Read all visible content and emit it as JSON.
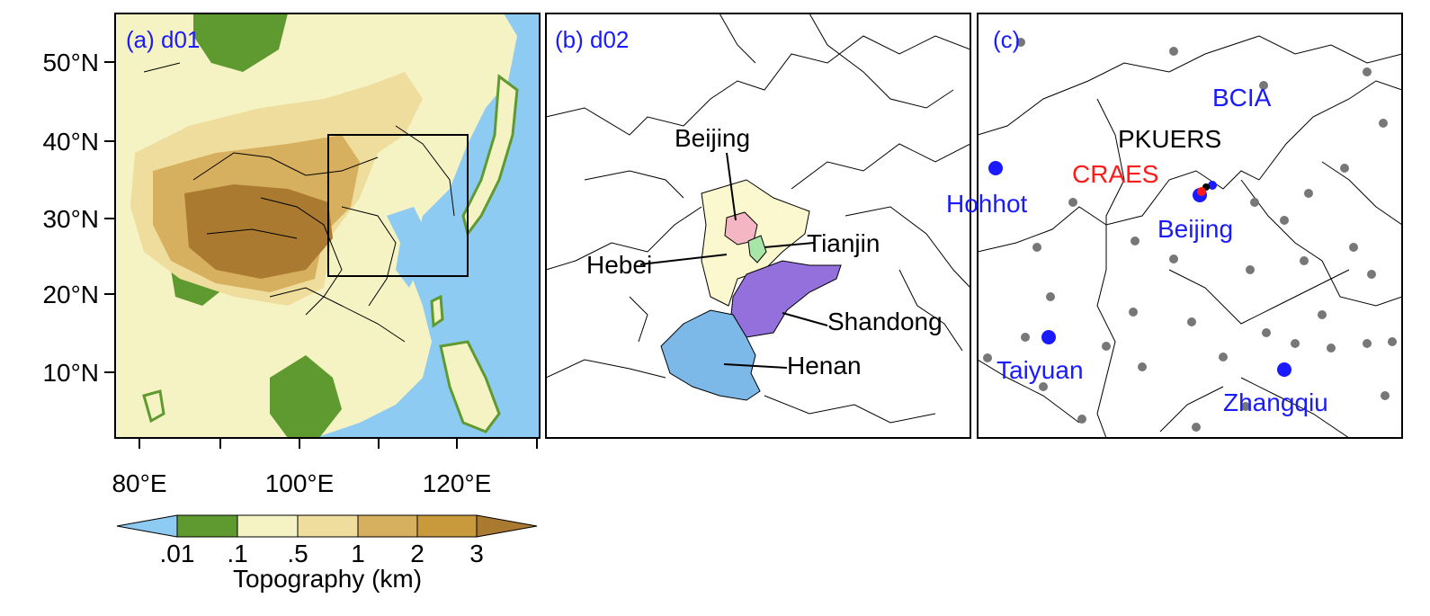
{
  "panel_a": {
    "label": "(a) d01",
    "lat_ticks": [
      "50°N",
      "40°N",
      "30°N",
      "20°N",
      "10°N"
    ],
    "lon_ticks": [
      "80°E",
      "100°E",
      "120°E"
    ]
  },
  "panel_b": {
    "label": "(b) d02",
    "regions": [
      {
        "name": "Beijing",
        "color": "#f4b6c2"
      },
      {
        "name": "Tianjin",
        "color": "#a8e6a8"
      },
      {
        "name": "Hebei",
        "color": "#fbf7cf"
      },
      {
        "name": "Shandong",
        "color": "#9370db"
      },
      {
        "name": "Henan",
        "color": "#7cb9e8"
      }
    ]
  },
  "panel_c": {
    "label": "(c)",
    "sites": [
      {
        "name": "BCIA",
        "color": "#1a1aff"
      },
      {
        "name": "PKUERS",
        "color": "#000000"
      },
      {
        "name": "CRAES",
        "color": "#ff1a1a"
      },
      {
        "name": "Hohhot",
        "color": "#1a1aff"
      },
      {
        "name": "Beijing",
        "color": "#1a1aff"
      },
      {
        "name": "Taiyuan",
        "color": "#1a1aff"
      },
      {
        "name": "Zhangqiu",
        "color": "#1a1aff"
      }
    ]
  },
  "colorbar": {
    "title": "Topography (km)",
    "tick_labels": [
      ".01",
      ".1",
      ".5",
      "1",
      "2",
      "3"
    ],
    "colors": [
      "#8ecbf2",
      "#5f9a30",
      "#f5f3c4",
      "#eedd9c",
      "#d6b05e",
      "#c99a3c",
      "#a97a30"
    ]
  }
}
